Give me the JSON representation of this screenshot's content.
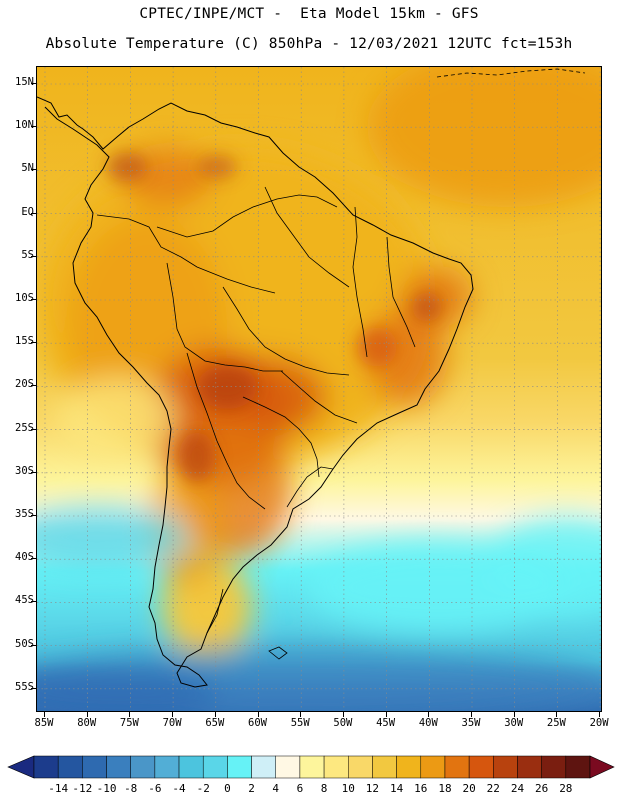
{
  "header": {
    "line1": "CPTEC/INPE/MCT -  Eta Model 15km - GFS",
    "line2": "Absolute Temperature (C) 850hPa - 12/03/2021 12UTC fct=153h"
  },
  "map": {
    "region": "South America",
    "variable": "Absolute Temperature (C) 850hPa",
    "lat_labels": [
      "15N",
      "10N",
      "5N",
      "EQ",
      "5S",
      "10S",
      "15S",
      "20S",
      "25S",
      "30S",
      "35S",
      "40S",
      "45S",
      "50S",
      "55S"
    ],
    "lon_labels": [
      "85W",
      "80W",
      "75W",
      "70W",
      "65W",
      "60W",
      "55W",
      "50W",
      "45W",
      "40W",
      "35W",
      "30W",
      "25W",
      "20W"
    ]
  },
  "colorbar": {
    "labels": [
      "-14",
      "-12",
      "-10",
      "-8",
      "-6",
      "-4",
      "-2",
      "0",
      "2",
      "4",
      "6",
      "8",
      "10",
      "12",
      "14",
      "16",
      "18",
      "20",
      "22",
      "24",
      "26",
      "28"
    ],
    "colors": [
      "#1c3c8c",
      "#2456a0",
      "#2e6ab0",
      "#3a7fbe",
      "#4a96c8",
      "#52aed6",
      "#4cc4de",
      "#5ad6e8",
      "#66f2f6",
      "#cfeff7",
      "#fff8e4",
      "#fdf59c",
      "#fde880",
      "#f9d868",
      "#f2c840",
      "#f0b41c",
      "#ec9a14",
      "#e27410",
      "#d6560e",
      "#b8420e",
      "#9a2e10",
      "#7a1e10",
      "#5e1410"
    ],
    "arrow_low": "#1a2a80",
    "arrow_high": "#7a0a20"
  }
}
